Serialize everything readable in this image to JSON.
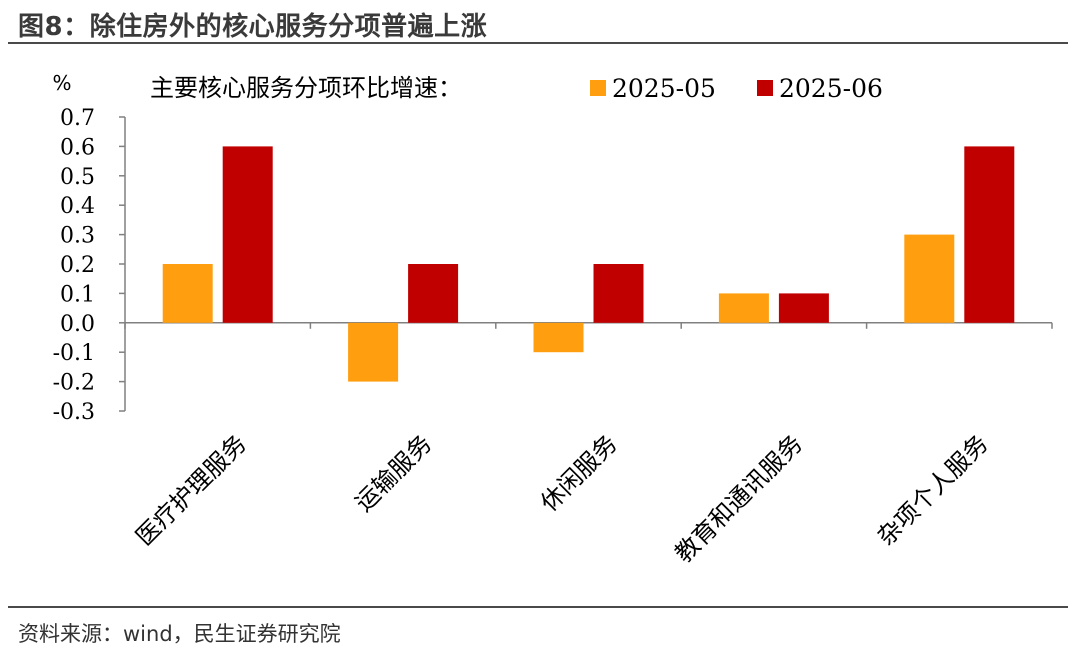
{
  "header": {
    "title": "图8：除住房外的核心服务分项普遍上涨"
  },
  "footer": {
    "source": "资料来源：wind，民生证券研究院"
  },
  "chart_data": {
    "type": "bar",
    "title": "主要核心服务分项环比增速：",
    "ylabel": "%",
    "ylim": [
      -0.3,
      0.7
    ],
    "yticks": [
      "0.7",
      "0.6",
      "0.5",
      "0.4",
      "0.3",
      "0.2",
      "0.1",
      "0.0",
      "-0.1",
      "-0.2",
      "-0.3"
    ],
    "categories": [
      "医疗护理服务",
      "运输服务",
      "休闲服务",
      "教育和通讯服务",
      "杂项个人服务"
    ],
    "series": [
      {
        "name": "2025-05",
        "color": "#FF9F10",
        "values": [
          0.2,
          -0.2,
          -0.1,
          0.1,
          0.3
        ]
      },
      {
        "name": "2025-06",
        "color": "#C00000",
        "values": [
          0.6,
          0.2,
          0.2,
          0.1,
          0.6
        ]
      }
    ],
    "legend_position": "top",
    "grid": false
  }
}
